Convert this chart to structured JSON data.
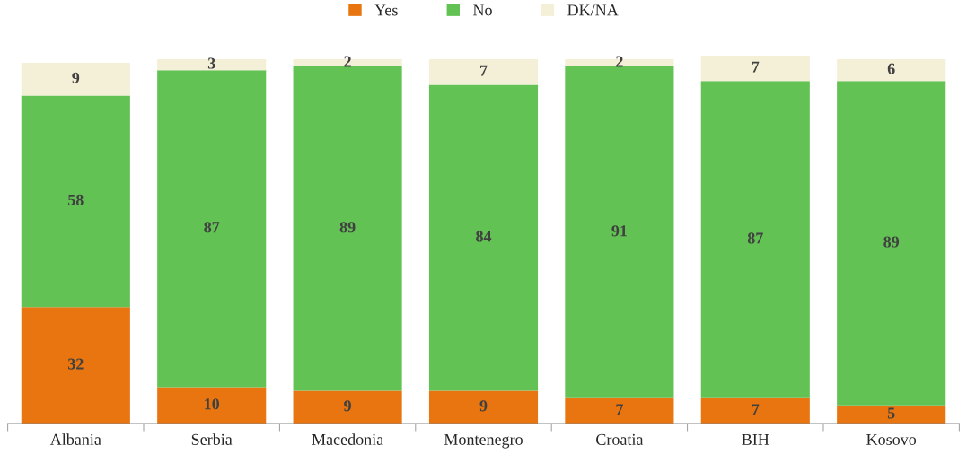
{
  "chart_data": {
    "type": "bar",
    "stacked": true,
    "categories": [
      "Albania",
      "Serbia",
      "Macedonia",
      "Montenegro",
      "Croatia",
      "BIH",
      "Kosovo"
    ],
    "series": [
      {
        "name": "Yes",
        "color": "#e8750f",
        "values": [
          32,
          10,
          9,
          9,
          7,
          7,
          5
        ]
      },
      {
        "name": "No",
        "color": "#62c254",
        "values": [
          58,
          87,
          89,
          84,
          91,
          87,
          89
        ]
      },
      {
        "name": "DK/NA",
        "color": "#f4efd7",
        "values": [
          9,
          3,
          2,
          7,
          2,
          7,
          6
        ]
      }
    ],
    "data_labels": true,
    "legend": "top",
    "grid": false
  }
}
